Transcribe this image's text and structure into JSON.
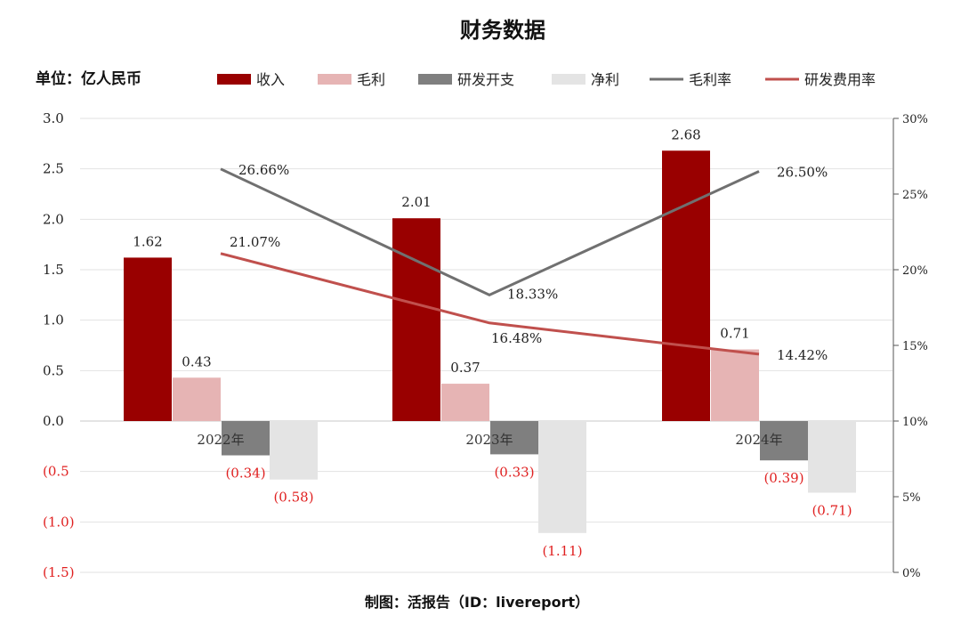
{
  "colors": {
    "revenue": "#990000",
    "gross_profit": "#e6b4b4",
    "rd": "#7f7f7f",
    "net_profit": "#e4e4e4",
    "gross_margin": "#707070",
    "rd_ratio": "#c0504d",
    "negative_text": "#e02020"
  },
  "chart_data": {
    "type": "bar",
    "title": "财务数据",
    "unit_label": "单位：亿人民币",
    "footer": "制图：活报告（ID：livereport）",
    "categories": [
      "2022年",
      "2023年",
      "2024年"
    ],
    "series": [
      {
        "name": "收入",
        "type": "bar",
        "axis": "left",
        "values": [
          1.62,
          2.01,
          2.68
        ],
        "labels": [
          "1.62",
          "2.01",
          "2.68"
        ]
      },
      {
        "name": "毛利",
        "type": "bar",
        "axis": "left",
        "values": [
          0.43,
          0.37,
          0.71
        ],
        "labels": [
          "0.43",
          "0.37",
          "0.71"
        ]
      },
      {
        "name": "研发开支",
        "type": "bar",
        "axis": "left",
        "values": [
          -0.34,
          -0.33,
          -0.39
        ],
        "labels": [
          "(0.34)",
          "(0.33)",
          "(0.39)"
        ]
      },
      {
        "name": "净利",
        "type": "bar",
        "axis": "left",
        "values": [
          -0.58,
          -1.11,
          -0.71
        ],
        "labels": [
          "(0.58)",
          "(1.11)",
          "(0.71)"
        ]
      },
      {
        "name": "毛利率",
        "type": "line",
        "axis": "right",
        "values": [
          26.66,
          18.33,
          26.5
        ],
        "labels": [
          "26.66%",
          "18.33%",
          "26.50%"
        ]
      },
      {
        "name": "研发费用率",
        "type": "line",
        "axis": "right",
        "values": [
          21.07,
          16.48,
          14.42
        ],
        "labels": [
          "21.07%",
          "16.48%",
          "14.42%"
        ]
      }
    ],
    "left_axis": {
      "ylim": [
        -1.5,
        3.0
      ],
      "ticks": [
        3.0,
        2.5,
        2.0,
        1.5,
        1.0,
        0.5,
        0.0,
        -0.5,
        -1.0,
        -1.5
      ],
      "tick_labels": [
        "3.0",
        "2.5",
        "2.0",
        "1.5",
        "1.0",
        "0.5",
        "0.0",
        "(0.5",
        "(1.0)",
        "(1.5)"
      ]
    },
    "right_axis": {
      "ylim": [
        0,
        30
      ],
      "ticks": [
        30,
        25,
        20,
        15,
        10,
        5,
        0
      ],
      "tick_labels": [
        "30%",
        "25%",
        "20%",
        "15%",
        "10%",
        "5%",
        "0%"
      ]
    },
    "grid": true,
    "legend_position": "top"
  }
}
